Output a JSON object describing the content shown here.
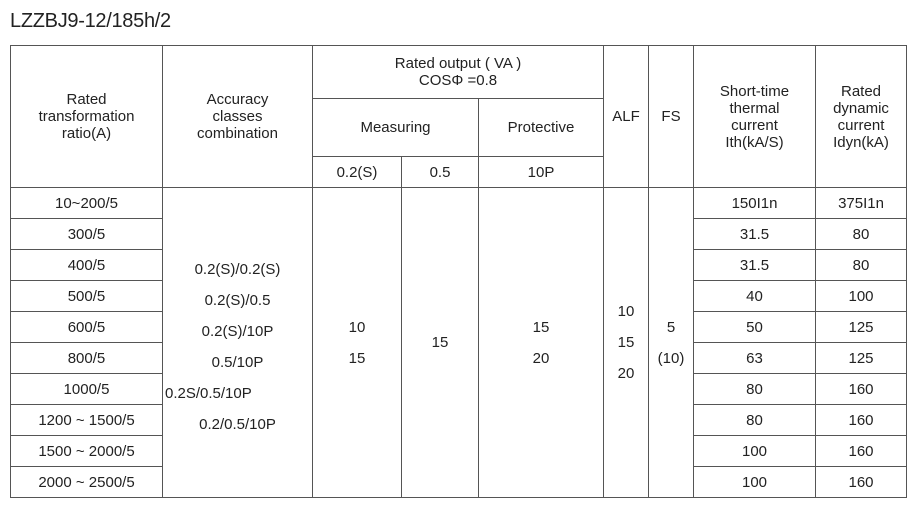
{
  "title": "LZZBJ9-12/185h/2",
  "headers": {
    "ratio": [
      "Rated",
      "transformation",
      "ratio(A)"
    ],
    "accuracy": [
      "Accuracy",
      "classes",
      "combination"
    ],
    "rated_output": [
      "Rated output ( VA )",
      "COSΦ =0.8"
    ],
    "measuring": "Measuring",
    "protective": "Protective",
    "m1": "0.2(S)",
    "m2": "0.5",
    "p1": "10P",
    "alf": "ALF",
    "fs": "FS",
    "thermal": [
      "Short-time",
      "thermal",
      "current",
      "Ith(kA/S)"
    ],
    "dynamic": [
      "Rated",
      "dynamic",
      "current",
      "Idyn(kA)"
    ]
  },
  "accuracy_combinations": [
    "0.2(S)/0.2(S)",
    "0.2(S)/0.5",
    "0.2(S)/10P",
    "0.5/10P",
    "0.2S/0.5/10P",
    "0.2/0.5/10P"
  ],
  "measuring_02s": [
    "10",
    "15"
  ],
  "measuring_05": [
    "15"
  ],
  "protective_10p": [
    "15",
    "20"
  ],
  "alf": [
    "10",
    "15",
    "20"
  ],
  "fs": [
    "5",
    "(10)"
  ],
  "rows": [
    {
      "ratio": "10~200/5",
      "ith": "150I1n",
      "idyn": "375I1n"
    },
    {
      "ratio": "300/5",
      "ith": "31.5",
      "idyn": "80"
    },
    {
      "ratio": "400/5",
      "ith": "31.5",
      "idyn": "80"
    },
    {
      "ratio": "500/5",
      "ith": "40",
      "idyn": "100"
    },
    {
      "ratio": "600/5",
      "ith": "50",
      "idyn": "125"
    },
    {
      "ratio": "800/5",
      "ith": "63",
      "idyn": "125"
    },
    {
      "ratio": "1000/5",
      "ith": "80",
      "idyn": "160"
    },
    {
      "ratio": "1200 ~ 1500/5",
      "ith": "80",
      "idyn": "160"
    },
    {
      "ratio": "1500 ~ 2000/5",
      "ith": "100",
      "idyn": "160"
    },
    {
      "ratio": "2000 ~ 2500/5",
      "ith": "100",
      "idyn": "160"
    }
  ]
}
